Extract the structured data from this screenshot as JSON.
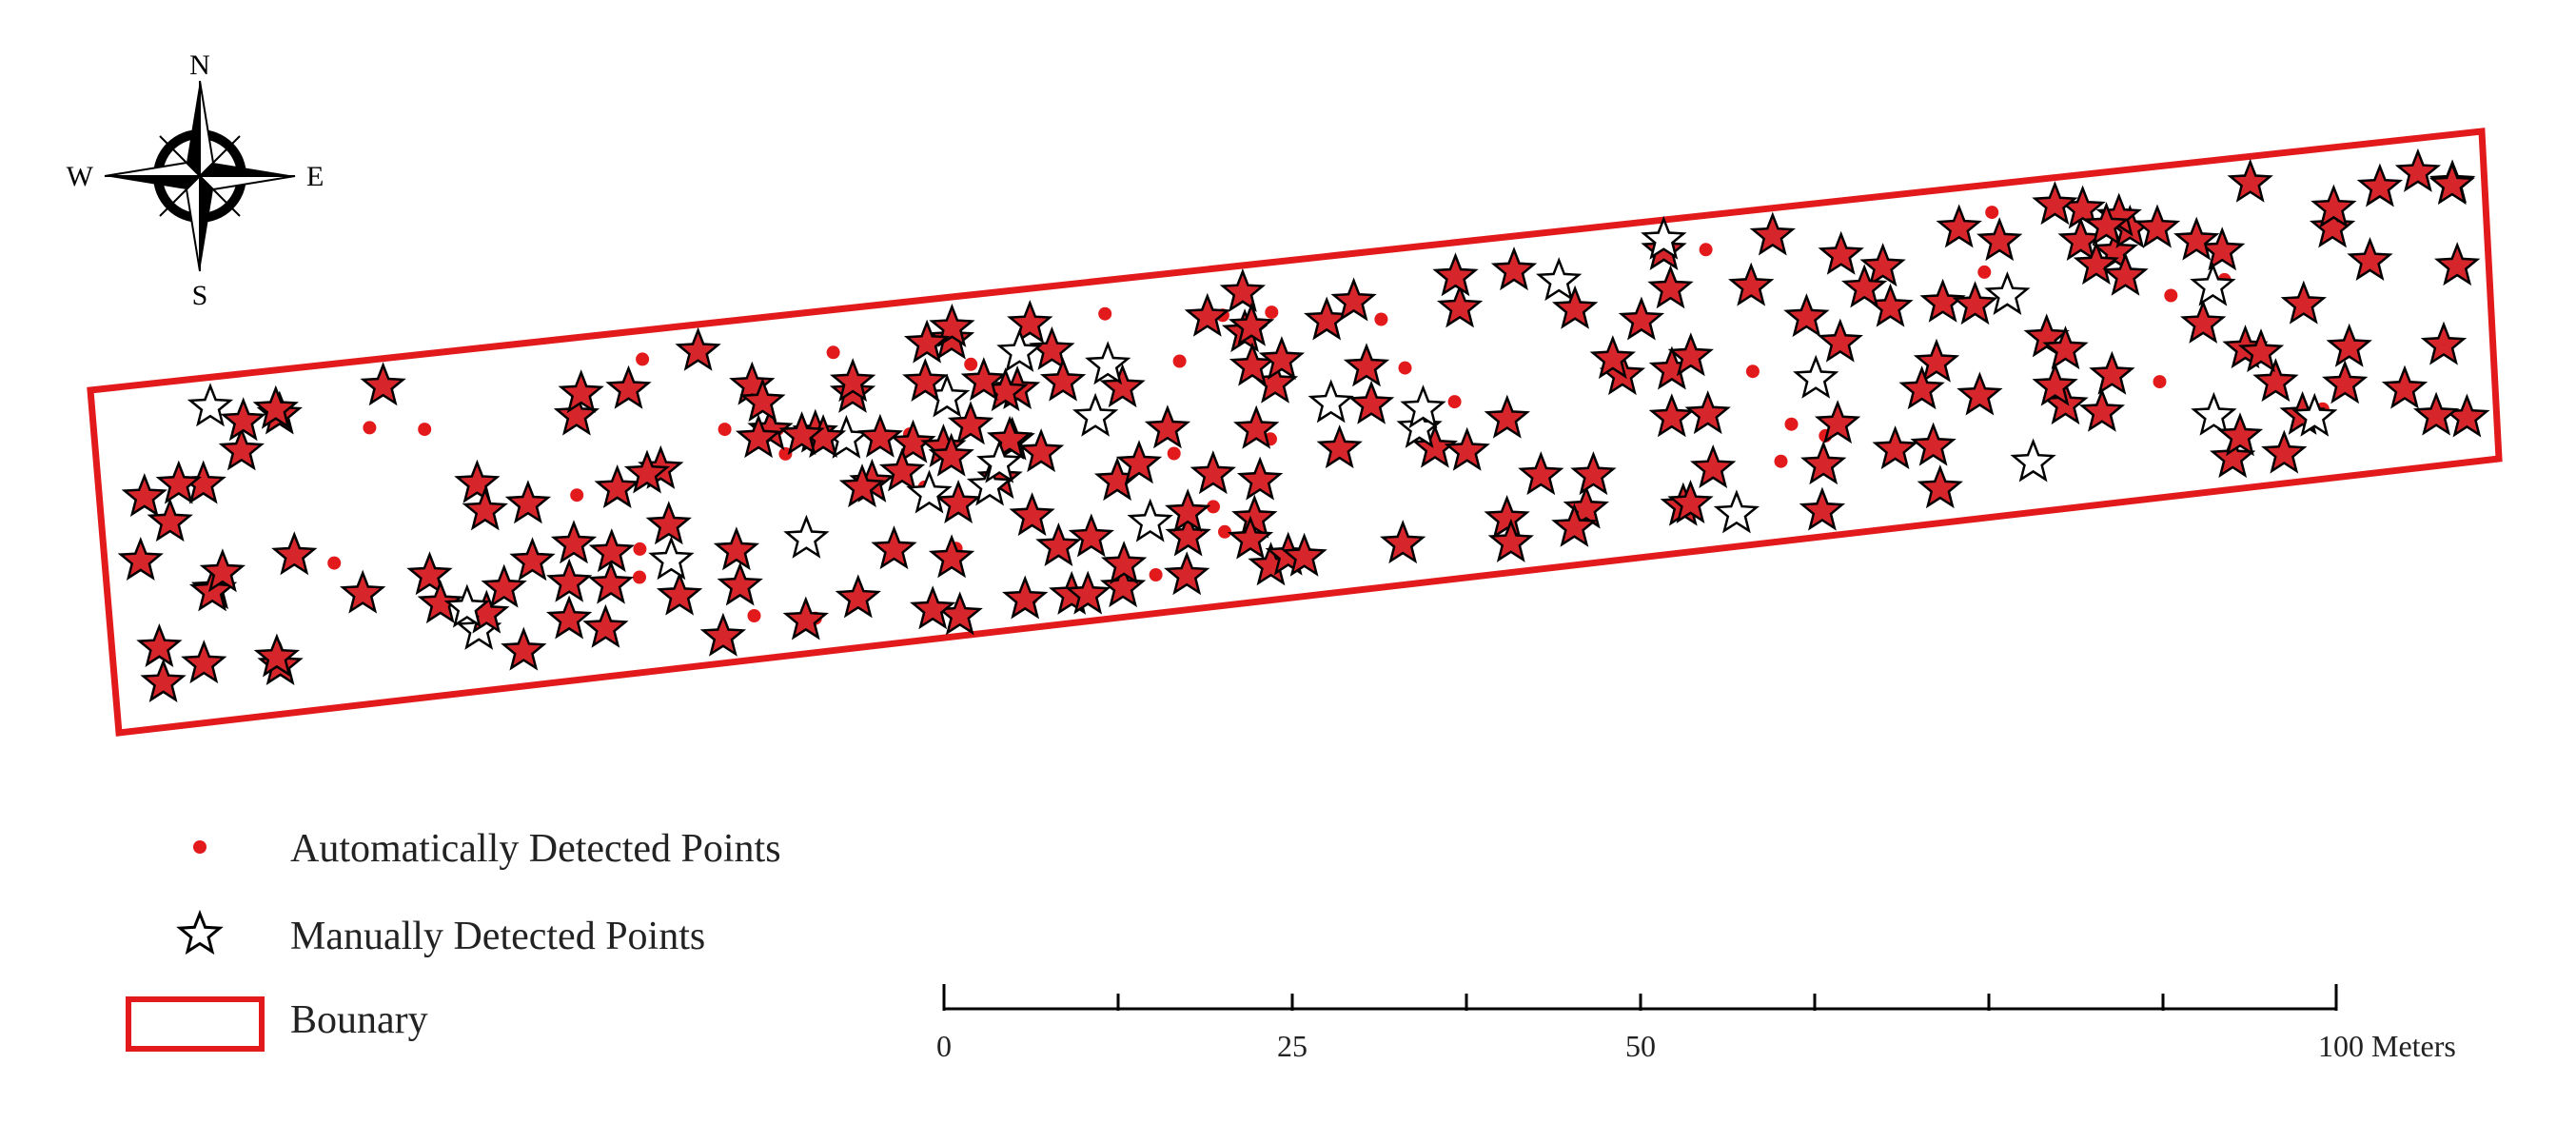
{
  "compass": {
    "north": "N",
    "south": "S",
    "east": "E",
    "west": "W",
    "icon": "compass-rose-icon"
  },
  "legend": {
    "auto_label": "Automatically Detected Points",
    "manual_label": "Manually Detected Points",
    "boundary_label": "Bounary",
    "auto_color": "#e31a1c",
    "boundary_color": "#e31a1c",
    "star_fill_color": "#d7262b",
    "star_outline_color": "#000000"
  },
  "scale_bar": {
    "labels": [
      "0",
      "25",
      "50",
      "100 Meters"
    ]
  }
}
